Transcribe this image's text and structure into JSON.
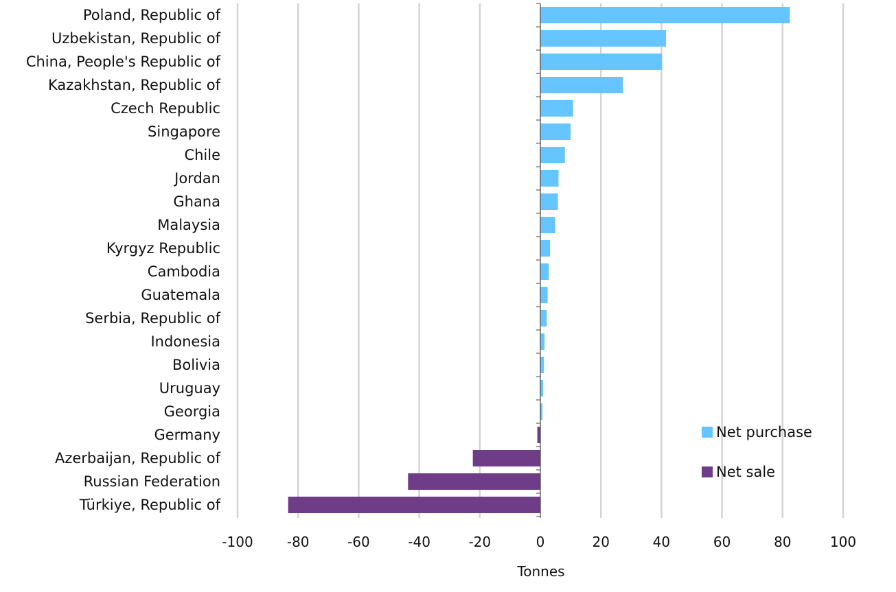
{
  "chart_data": {
    "type": "bar",
    "orientation": "horizontal",
    "categories": [
      "Poland, Republic of",
      "Uzbekistan, Republic of",
      "China, People's Republic of",
      "Kazakhstan, Republic of",
      "Czech Republic",
      "Singapore",
      "Chile",
      "Jordan",
      "Ghana",
      "Malaysia",
      "Kyrgyz Republic",
      "Cambodia",
      "Guatemala",
      "Serbia, Republic of",
      "Indonesia",
      "Bolivia",
      "Uruguay",
      "Georgia",
      "Germany",
      "Azerbaijan, Republic of",
      "Russian Federation",
      "Türkiye, Republic of"
    ],
    "values": [
      82.4,
      41.5,
      40.2,
      27.3,
      10.8,
      10.0,
      8.1,
      6.0,
      5.8,
      4.9,
      3.2,
      2.8,
      2.4,
      2.1,
      1.4,
      1.2,
      0.9,
      0.7,
      -1.0,
      -22.3,
      -43.7,
      -83.3
    ],
    "legend": [
      {
        "name": "Net purchase",
        "color": "#66c5ff"
      },
      {
        "name": "Net sale",
        "color": "#6f3d88"
      }
    ],
    "colors": {
      "positive": "#66c5ff",
      "negative": "#6f3d88",
      "grid": "#d3d3d3",
      "axis": "#444444"
    },
    "xlabel": "Tonnes",
    "ylabel": "",
    "xlim": [
      -100,
      100
    ],
    "xticks": [
      -100,
      -80,
      -60,
      -40,
      -20,
      0,
      20,
      40,
      60,
      80,
      100
    ],
    "grid": true,
    "legend_position": "bottom-right"
  }
}
